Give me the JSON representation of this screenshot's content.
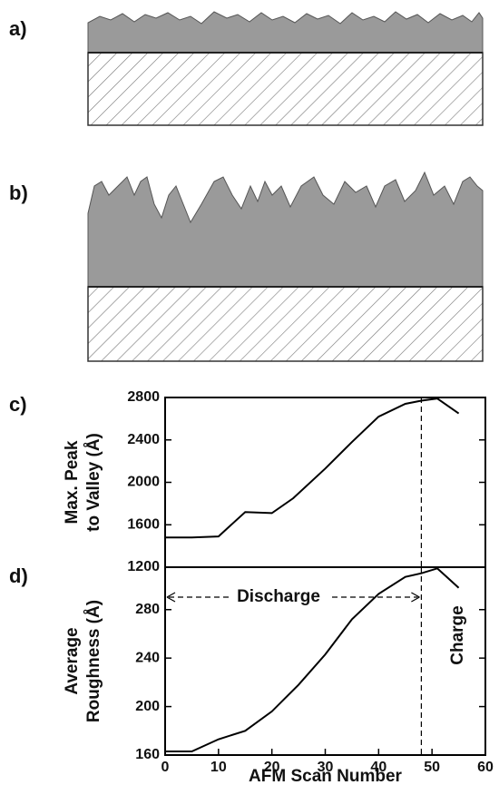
{
  "panel_labels": [
    "a)",
    "b)",
    "c)",
    "d)"
  ],
  "chart_data": [
    {
      "type": "line",
      "ylabel": [
        "Max. Peak",
        "to Valley (Å)"
      ],
      "x": [
        0,
        5,
        10,
        15,
        20,
        24,
        30,
        35,
        40,
        45,
        48,
        51,
        55
      ],
      "values": [
        1480,
        1480,
        1490,
        1720,
        1710,
        1850,
        2130,
        2380,
        2620,
        2740,
        2770,
        2790,
        2650
      ],
      "color": "#000000",
      "xlim": [
        0,
        60
      ],
      "ylim": [
        1200,
        2800
      ],
      "yticks": [
        1200,
        1600,
        2000,
        2400,
        2800
      ],
      "marker_x": 48
    },
    {
      "type": "line",
      "ylabel": [
        "Average",
        "Roughness (Å)"
      ],
      "xlabel": "AFM Scan Number",
      "x": [
        0,
        5,
        10,
        15,
        20,
        25,
        30,
        35,
        40,
        45,
        48,
        51,
        55
      ],
      "values": [
        163,
        163,
        173,
        180,
        196,
        218,
        243,
        272,
        293,
        307,
        310,
        314,
        298
      ],
      "color": "#000000",
      "xlim": [
        0,
        60
      ],
      "ylim": [
        160,
        315
      ],
      "xticks": [
        0,
        10,
        20,
        30,
        40,
        50,
        60
      ],
      "yticks": [
        160,
        200,
        240,
        280
      ],
      "marker_x": 48,
      "annotations": [
        "Discharge",
        "Charge"
      ]
    }
  ]
}
